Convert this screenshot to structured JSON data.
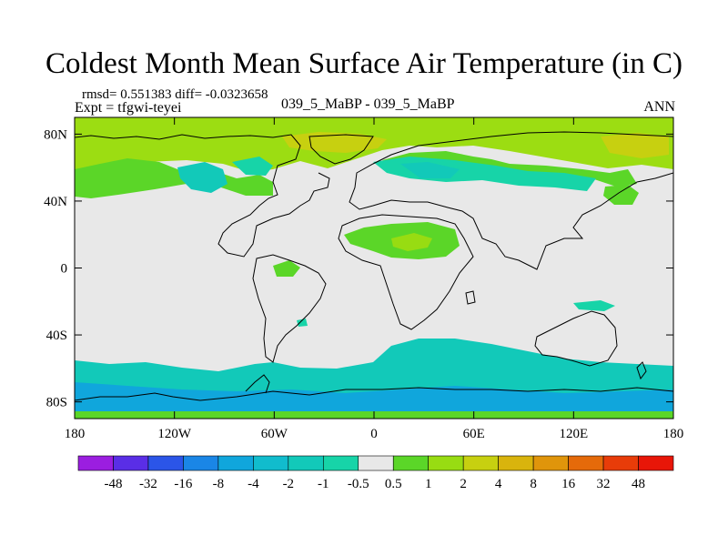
{
  "title": "Coldest Month Mean Surface Air Temperature (in C)",
  "stats": "rmsd= 0.551383 diff= -0.0323658",
  "expt": "Expt = tfgwi-teyei",
  "case": "039_5_MaBP - 039_5_MaBP",
  "season": "ANN",
  "map": {
    "lon_range": [
      -180,
      180
    ],
    "lat_range": [
      -90,
      90
    ],
    "x_ticks": [
      {
        "lon": -180,
        "label": "180"
      },
      {
        "lon": -120,
        "label": "120W"
      },
      {
        "lon": -60,
        "label": "60W"
      },
      {
        "lon": 0,
        "label": "0"
      },
      {
        "lon": 60,
        "label": "60E"
      },
      {
        "lon": 120,
        "label": "120E"
      },
      {
        "lon": 180,
        "label": "180"
      }
    ],
    "y_ticks": [
      {
        "lat": 80,
        "label": "80N"
      },
      {
        "lat": 40,
        "label": "40N"
      },
      {
        "lat": 0,
        "label": "0"
      },
      {
        "lat": -40,
        "label": "40S"
      },
      {
        "lat": -80,
        "label": "80S"
      }
    ],
    "background_color": "#e8e8e8"
  },
  "colorbar": {
    "labels": [
      "-48",
      "-32",
      "-16",
      "-8",
      "-4",
      "-2",
      "-1",
      "-0.5",
      "0.5",
      "1",
      "2",
      "4",
      "8",
      "16",
      "32",
      "48"
    ],
    "colors": [
      "#9b1ee0",
      "#5a2ee6",
      "#2b55e8",
      "#1a86e6",
      "#10a6dc",
      "#11bccd",
      "#12c9b9",
      "#17d4a8",
      "#e8e8e8",
      "#5bd628",
      "#98dc12",
      "#c7d010",
      "#d9b40d",
      "#e0950b",
      "#e56a0a",
      "#e83c09",
      "#e81608"
    ]
  }
}
